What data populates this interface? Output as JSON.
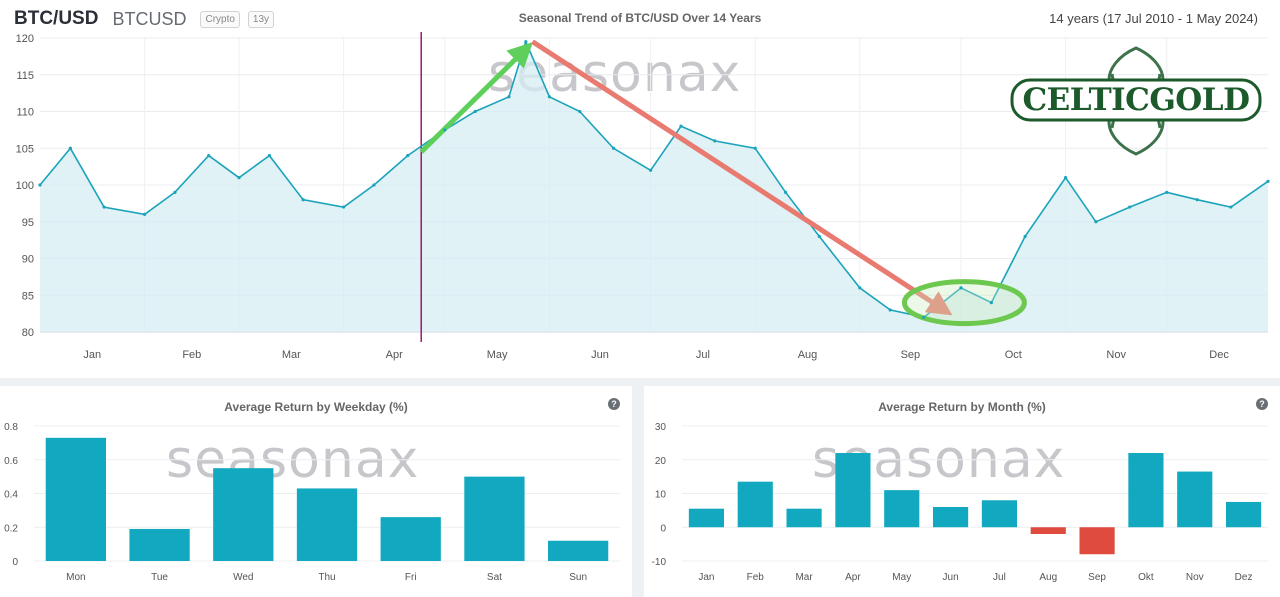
{
  "header": {
    "symbol": "BTC/USD",
    "ticker": "BTCUSD",
    "badge_type": "Crypto",
    "badge_years": "13y",
    "title": "Seasonal Trend of BTC/USD Over 14 Years",
    "range": "14 years (17 Jul 2010 - 1 May 2024)"
  },
  "watermark": "seasonax",
  "logo": {
    "text": "CELTICGOLD",
    "color": "#1c5a2b"
  },
  "colors": {
    "line": "#1aa3bb",
    "fill": "#d6edf3",
    "bar": "#12a9c0",
    "negative": "#e04b3f",
    "up_arrow": "#5ecf5a",
    "down_arrow": "#e87a70",
    "marker": "#9c1a6a",
    "ellipse": "#6cc84e"
  },
  "chart_data": [
    {
      "type": "line",
      "title": "Seasonal Trend of BTC/USD Over 14 Years",
      "xlabel": "",
      "ylabel": "",
      "ylim": [
        80,
        120
      ],
      "yticks": [
        80,
        85,
        90,
        95,
        100,
        105,
        110,
        115,
        120
      ],
      "x_labels": [
        "Jan",
        "Feb",
        "Mar",
        "Apr",
        "May",
        "Jun",
        "Jul",
        "Aug",
        "Sep",
        "Oct",
        "Nov",
        "Dec"
      ],
      "x": [
        "Jan 1",
        "Jan 10",
        "Jan 20",
        "Feb 1",
        "Feb 10",
        "Feb 20",
        "Mar 1",
        "Mar 10",
        "Mar 20",
        "Apr 1",
        "Apr 10",
        "Apr 20",
        "May 1",
        "May 10",
        "May 20",
        "May 25",
        "Jun 1",
        "Jun 10",
        "Jun 20",
        "Jul 1",
        "Jul 10",
        "Jul 20",
        "Aug 1",
        "Aug 10",
        "Aug 20",
        "Sep 1",
        "Sep 10",
        "Sep 20",
        "Oct 1",
        "Oct 10",
        "Oct 20",
        "Nov 1",
        "Nov 10",
        "Nov 20",
        "Dec 1",
        "Dec 10",
        "Dec 20",
        "Dec 31"
      ],
      "values": [
        100,
        105,
        97,
        96,
        99,
        104,
        101,
        104,
        98,
        97,
        100,
        104,
        107.5,
        110,
        112,
        119.5,
        112,
        110,
        105,
        102,
        108,
        106,
        105,
        99,
        93,
        86,
        83,
        82,
        86,
        84,
        93,
        101,
        95,
        97,
        99,
        98,
        97,
        100.5
      ],
      "vertical_marker": "Apr 24",
      "annotations": [
        "up arrow Apr 24 to May 27",
        "down arrow May 27 to Sep 26",
        "ellipse Sep 20 to Oct 15"
      ]
    },
    {
      "type": "bar",
      "title": "Average Return by Weekday (%)",
      "categories": [
        "Mon",
        "Tue",
        "Wed",
        "Thu",
        "Fri",
        "Sat",
        "Sun"
      ],
      "values": [
        0.73,
        0.19,
        0.55,
        0.43,
        0.26,
        0.5,
        0.12
      ],
      "ylim": [
        0,
        0.8
      ],
      "yticks": [
        0,
        0.2,
        0.4,
        0.6,
        0.8
      ],
      "ytick_labels": [
        "0",
        "0.2",
        "0.4",
        "0.6",
        "0.8"
      ]
    },
    {
      "type": "bar",
      "title": "Average Return by Month (%)",
      "categories": [
        "Jan",
        "Feb",
        "Mar",
        "Apr",
        "May",
        "Jun",
        "Jul",
        "Aug",
        "Sep",
        "Okt",
        "Nov",
        "Dez"
      ],
      "values": [
        5.5,
        13.5,
        5.5,
        22,
        11,
        6,
        8,
        -2,
        -8,
        22,
        16.5,
        7.5
      ],
      "ylim": [
        -10,
        30
      ],
      "yticks": [
        -10,
        0,
        10,
        20,
        30
      ],
      "ytick_labels": [
        "-10",
        "0",
        "10",
        "20",
        "30"
      ]
    }
  ]
}
